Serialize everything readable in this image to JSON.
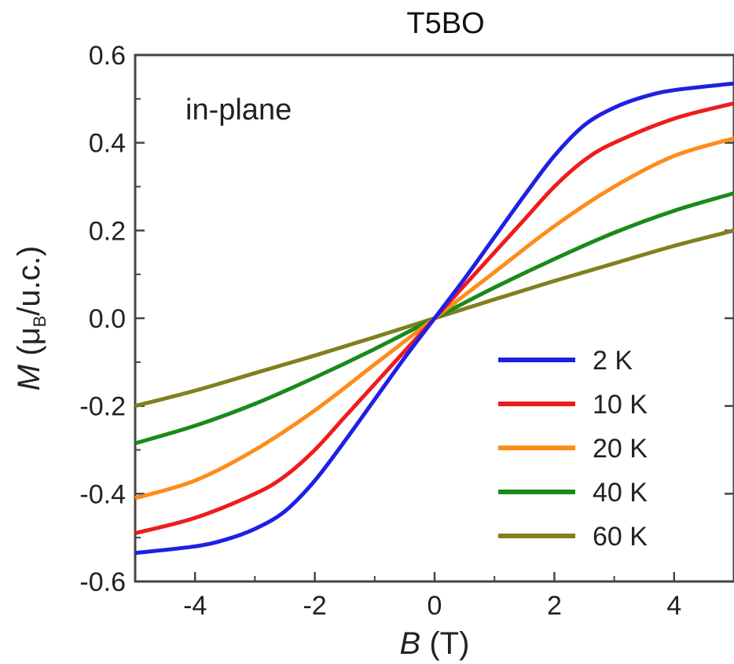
{
  "chart_data": {
    "type": "line",
    "title": "T5BO",
    "annotation": "in-plane",
    "xlabel_var": "B",
    "xlabel_unit": "(T)",
    "ylabel_var": "M",
    "ylabel_open": "(μ",
    "ylabel_sub": "B",
    "ylabel_close": "/u.c.)",
    "xlim": [
      -5,
      5
    ],
    "ylim": [
      -0.6,
      0.6
    ],
    "xticks": [
      "-4",
      "-2",
      "0",
      "2",
      "4"
    ],
    "xtick_values": [
      -4,
      -2,
      0,
      2,
      4
    ],
    "yticks": [
      "0.6",
      "0.4",
      "0.2",
      "0.0",
      "-0.2",
      "-0.4",
      "-0.6"
    ],
    "ytick_values": [
      0.6,
      0.4,
      0.2,
      0.0,
      -0.2,
      -0.4,
      -0.6
    ],
    "legend_position": "bottom-right",
    "series": [
      {
        "name": "2 K",
        "color": "#1f1fe6",
        "x": [
          -5,
          -4,
          -3.5,
          -3,
          -2.5,
          -2,
          -1.5,
          -1,
          -0.5,
          0,
          0.5,
          1,
          1.5,
          2,
          2.5,
          3,
          3.5,
          4,
          5
        ],
        "y": [
          -0.535,
          -0.52,
          -0.505,
          -0.48,
          -0.44,
          -0.37,
          -0.28,
          -0.185,
          -0.09,
          0.0,
          0.09,
          0.185,
          0.28,
          0.37,
          0.44,
          0.48,
          0.505,
          0.52,
          0.535
        ]
      },
      {
        "name": "10 K",
        "color": "#ee1c1c",
        "x": [
          -5,
          -4,
          -3,
          -2.5,
          -2,
          -1.5,
          -1,
          -0.5,
          0,
          0.5,
          1,
          1.5,
          2,
          2.5,
          3,
          4,
          5
        ],
        "y": [
          -0.49,
          -0.455,
          -0.4,
          -0.36,
          -0.3,
          -0.225,
          -0.15,
          -0.075,
          0.0,
          0.075,
          0.15,
          0.225,
          0.3,
          0.36,
          0.4,
          0.455,
          0.49
        ],
        "hysteresis": 0.008
      },
      {
        "name": "20 K",
        "color": "#ff8c1a",
        "x": [
          -5,
          -4,
          -3,
          -2,
          -1,
          0,
          1,
          2,
          3,
          4,
          5
        ],
        "y": [
          -0.41,
          -0.37,
          -0.3,
          -0.21,
          -0.105,
          0.0,
          0.105,
          0.21,
          0.3,
          0.37,
          0.41
        ],
        "hysteresis": 0.006
      },
      {
        "name": "40 K",
        "color": "#1a8a1a",
        "x": [
          -5,
          -4,
          -3,
          -2,
          -1,
          0,
          1,
          2,
          3,
          4,
          5
        ],
        "y": [
          -0.285,
          -0.245,
          -0.195,
          -0.135,
          -0.07,
          0.0,
          0.07,
          0.135,
          0.195,
          0.245,
          0.285
        ],
        "hysteresis": 0.004
      },
      {
        "name": "60 K",
        "color": "#808020",
        "x": [
          -5,
          -4,
          -3,
          -2,
          -1,
          0,
          1,
          2,
          3,
          4,
          5
        ],
        "y": [
          -0.2,
          -0.165,
          -0.125,
          -0.085,
          -0.043,
          0.0,
          0.043,
          0.085,
          0.125,
          0.165,
          0.2
        ],
        "hysteresis": 0.004
      }
    ]
  }
}
